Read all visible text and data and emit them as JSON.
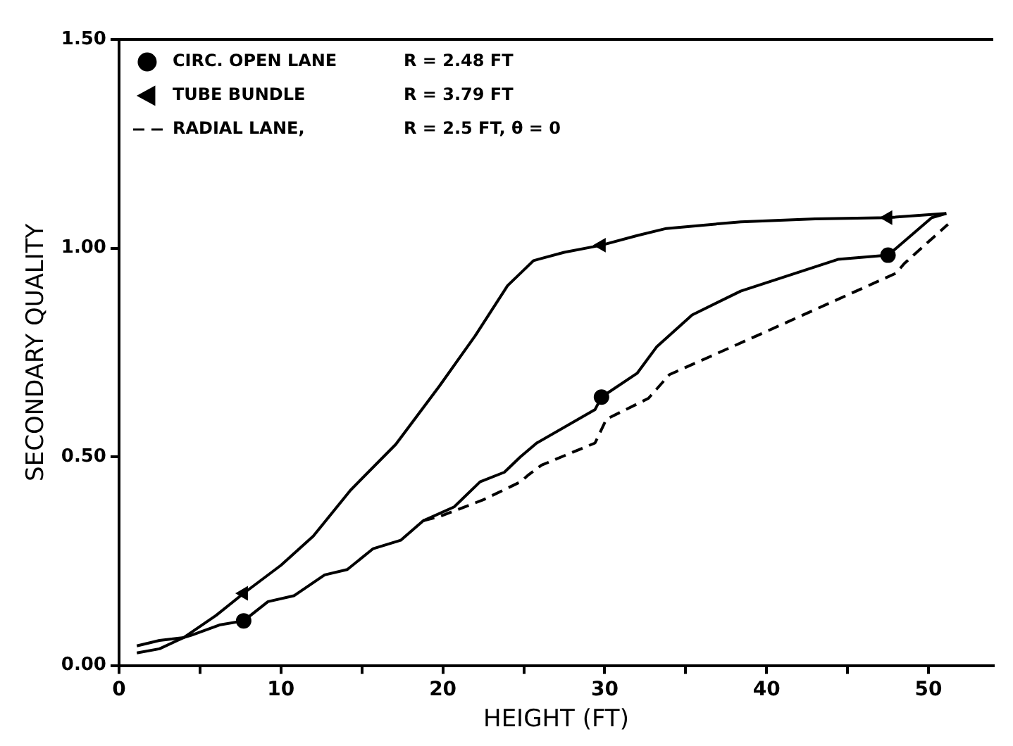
{
  "chart_data": {
    "type": "line",
    "xlabel": "HEIGHT (FT)",
    "ylabel": "SECONDARY QUALITY",
    "xlim": [
      0,
      54
    ],
    "ylim": [
      0,
      1.5
    ],
    "xticks": [
      0,
      {
        "value": 5,
        "label": null
      },
      10,
      {
        "value": 15,
        "label": null
      },
      20,
      {
        "value": 25,
        "label": null
      },
      30,
      {
        "value": 35,
        "label": null
      },
      40,
      {
        "value": 45,
        "label": null
      },
      50
    ],
    "yticks": [
      {
        "value": 0,
        "label": "0.00"
      },
      {
        "value": 0.5,
        "label": "0.50"
      },
      {
        "value": 1,
        "label": "1.00"
      },
      {
        "value": 1.5,
        "label": "1.50"
      }
    ],
    "grid": false,
    "legend": "top left",
    "annotations": [
      "R = 2.48 FT",
      "R = 3.79 FT",
      "R = 2.5 FT, θ = 0"
    ],
    "series": [
      {
        "color": "#000000",
        "marker": "none",
        "line_style": "solid",
        "x": [
          1.1,
          2.5,
          4.0,
          4.5,
          6.2,
          7.7,
          9.2,
          10.8,
          12.7,
          14.1,
          15.7,
          17.4,
          18.8,
          20.7,
          22.3,
          23.8,
          24.8,
          25.8,
          29.4,
          29.8,
          32.0,
          33.2,
          35.4,
          38.4,
          44.4,
          47.5,
          50.2,
          51.1
        ],
        "values": [
          0.047,
          0.06,
          0.067,
          0.073,
          0.097,
          0.107,
          0.153,
          0.167,
          0.217,
          0.23,
          0.28,
          0.3,
          0.347,
          0.38,
          0.44,
          0.463,
          0.5,
          0.533,
          0.613,
          0.643,
          0.7,
          0.763,
          0.84,
          0.897,
          0.973,
          0.983,
          1.073,
          1.083
        ]
      },
      {
        "color": "#000000",
        "marker": "none",
        "line_style": "solid",
        "x": [
          1.1,
          2.5,
          4.0,
          6.0,
          7.7,
          10.0,
          12.0,
          14.3,
          17.1,
          19.8,
          22.0,
          24.0,
          25.6,
          27.5,
          29.8,
          32.0,
          33.8,
          38.4,
          43.0,
          47.5,
          51.1
        ],
        "values": [
          0.03,
          0.04,
          0.067,
          0.12,
          0.173,
          0.24,
          0.31,
          0.42,
          0.53,
          0.67,
          0.79,
          0.91,
          0.97,
          0.99,
          1.007,
          1.03,
          1.047,
          1.063,
          1.07,
          1.073,
          1.083
        ]
      },
      {
        "type": "scatter",
        "name": "CIRC. OPEN LANE",
        "color": "#000000",
        "marker": "circle",
        "x": [
          7.7,
          29.8,
          47.5
        ],
        "values": [
          0.107,
          0.643,
          0.983
        ]
      },
      {
        "type": "scatter",
        "name": "TUBE BUNDLE",
        "color": "#000000",
        "marker": "triangle",
        "x": [
          7.7,
          29.8,
          47.5
        ],
        "values": [
          0.173,
          1.007,
          1.073
        ]
      },
      {
        "name": "RADIAL LANE,",
        "color": "#000000",
        "marker": "none",
        "line_style": "dashed",
        "x": [
          18.8,
          19.8,
          22.5,
          24.8,
          25.3,
          26.1,
          29.4,
          30.1,
          32.7,
          34.0,
          36.5,
          39.8,
          48.0,
          48.5,
          51.2
        ],
        "values": [
          0.347,
          0.357,
          0.397,
          0.44,
          0.457,
          0.48,
          0.533,
          0.59,
          0.64,
          0.697,
          0.74,
          0.797,
          0.94,
          0.963,
          1.057
        ]
      }
    ]
  }
}
